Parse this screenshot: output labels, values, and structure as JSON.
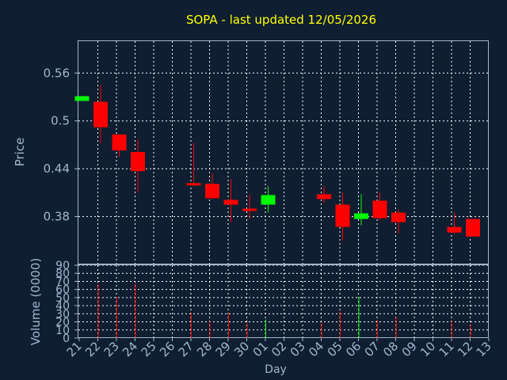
{
  "chart_data": [
    {
      "type": "candlestick",
      "title": "SOPA - last updated 12/05/2026",
      "ylabel": "Price",
      "yticks": [
        "0.56",
        "0.5",
        "0.44",
        "0.38"
      ],
      "ylim": [
        0.32,
        0.6
      ],
      "grid": true,
      "x_ticks": [
        "21",
        "22",
        "23",
        "24",
        "25",
        "26",
        "27",
        "28",
        "29",
        "30",
        "01",
        "02",
        "03",
        "04",
        "05",
        "06",
        "07",
        "08",
        "09",
        "10",
        "11",
        "12",
        "13"
      ],
      "candles": [
        {
          "day": "21",
          "open": 0.525,
          "high": 0.531,
          "low": 0.525,
          "close": 0.531
        },
        {
          "day": "22",
          "open": 0.524,
          "high": 0.545,
          "low": 0.472,
          "close": 0.492
        },
        {
          "day": "23",
          "open": 0.483,
          "high": 0.483,
          "low": 0.455,
          "close": 0.463
        },
        {
          "day": "24",
          "open": 0.461,
          "high": 0.477,
          "low": 0.41,
          "close": 0.437
        },
        {
          "day": "27",
          "open": 0.422,
          "high": 0.472,
          "low": 0.418,
          "close": 0.42
        },
        {
          "day": "28",
          "open": 0.421,
          "high": 0.434,
          "low": 0.402,
          "close": 0.403
        },
        {
          "day": "29",
          "open": 0.401,
          "high": 0.427,
          "low": 0.373,
          "close": 0.395
        },
        {
          "day": "30",
          "open": 0.39,
          "high": 0.407,
          "low": 0.377,
          "close": 0.387
        },
        {
          "day": "01",
          "open": 0.395,
          "high": 0.418,
          "low": 0.385,
          "close": 0.407
        },
        {
          "day": "04",
          "open": 0.408,
          "high": 0.418,
          "low": 0.397,
          "close": 0.402
        },
        {
          "day": "05",
          "open": 0.395,
          "high": 0.41,
          "low": 0.35,
          "close": 0.367
        },
        {
          "day": "06",
          "open": 0.377,
          "high": 0.408,
          "low": 0.369,
          "close": 0.384
        },
        {
          "day": "07",
          "open": 0.4,
          "high": 0.41,
          "low": 0.375,
          "close": 0.378
        },
        {
          "day": "08",
          "open": 0.385,
          "high": 0.389,
          "low": 0.359,
          "close": 0.373
        },
        {
          "day": "11",
          "open": 0.367,
          "high": 0.385,
          "low": 0.358,
          "close": 0.36
        },
        {
          "day": "12",
          "open": 0.377,
          "high": 0.377,
          "low": 0.355,
          "close": 0.355
        }
      ]
    },
    {
      "type": "bar",
      "xlabel": "Day",
      "ylabel": "Volume (0000)",
      "yticks": [
        "0",
        "10",
        "20",
        "30",
        "40",
        "50",
        "60",
        "70",
        "80",
        "90"
      ],
      "ylim": [
        0,
        90
      ],
      "x_ticks": [
        "21",
        "22",
        "23",
        "24",
        "25",
        "26",
        "27",
        "28",
        "29",
        "30",
        "01",
        "02",
        "03",
        "04",
        "05",
        "06",
        "07",
        "08",
        "09",
        "10",
        "11",
        "12",
        "13"
      ],
      "bars": [
        {
          "day": "21",
          "value": 0,
          "direction": "up"
        },
        {
          "day": "22",
          "value": 67,
          "direction": "down"
        },
        {
          "day": "23",
          "value": 51,
          "direction": "down"
        },
        {
          "day": "24",
          "value": 67,
          "direction": "down"
        },
        {
          "day": "27",
          "value": 31,
          "direction": "down"
        },
        {
          "day": "28",
          "value": 21,
          "direction": "down"
        },
        {
          "day": "29",
          "value": 31,
          "direction": "down"
        },
        {
          "day": "30",
          "value": 19,
          "direction": "down"
        },
        {
          "day": "01",
          "value": 23,
          "direction": "up"
        },
        {
          "day": "04",
          "value": 19,
          "direction": "down"
        },
        {
          "day": "05",
          "value": 33,
          "direction": "down"
        },
        {
          "day": "06",
          "value": 51,
          "direction": "up"
        },
        {
          "day": "07",
          "value": 22,
          "direction": "down"
        },
        {
          "day": "08",
          "value": 26,
          "direction": "down"
        },
        {
          "day": "11",
          "value": 21,
          "direction": "down"
        },
        {
          "day": "12",
          "value": 17,
          "direction": "down"
        }
      ]
    }
  ],
  "colors": {
    "background": "#0f1e30",
    "axis": "#a0b8d0",
    "grid": "#ffffff",
    "title": "#ffff00",
    "up": "#00ff00",
    "down": "#ff0000"
  }
}
